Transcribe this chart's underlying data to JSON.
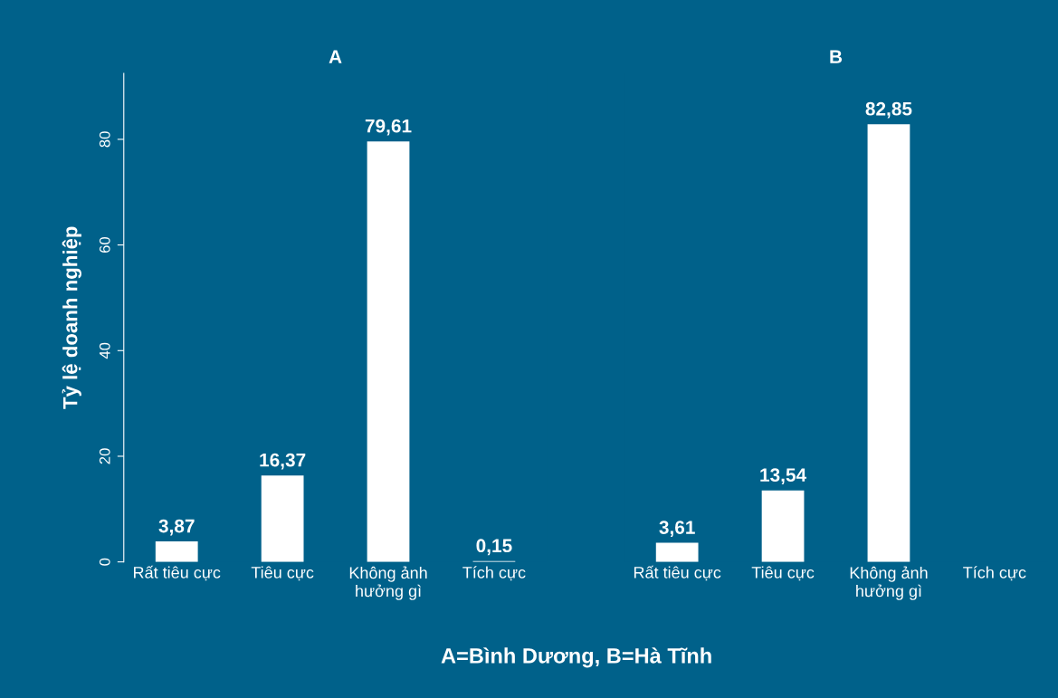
{
  "chart_data": [
    {
      "type": "bar",
      "title": "A",
      "ylabel": "Tỷ lệ doanh nghiệp",
      "xlabel": "A=Bình Dương, B=Hà Tĩnh",
      "categories": [
        "Rất tiêu cực",
        "Tiêu cực",
        "Không ảnh\nhưởng gì",
        "Tích cực"
      ],
      "values": [
        3.87,
        16.37,
        79.61,
        0.15
      ],
      "color": "#ffffff",
      "value_labels": [
        "3,87",
        "16,37",
        "79,61",
        "0,15"
      ],
      "ylim": [
        0,
        92.5
      ],
      "yticks": [
        0,
        20,
        40,
        60,
        80
      ],
      "grid": false,
      "legend": false
    },
    {
      "type": "bar",
      "title": "B",
      "categories": [
        "Rất tiêu cực",
        "Tiêu cực",
        "Không ảnh\nhưởng gì",
        "Tích cực"
      ],
      "values": [
        3.61,
        13.54,
        82.85,
        null
      ],
      "color": "#ffffff",
      "value_labels": [
        "3,61",
        "13,54",
        "82,85",
        null
      ],
      "tick_labels": "x",
      "grid": false,
      "legend": false
    }
  ]
}
